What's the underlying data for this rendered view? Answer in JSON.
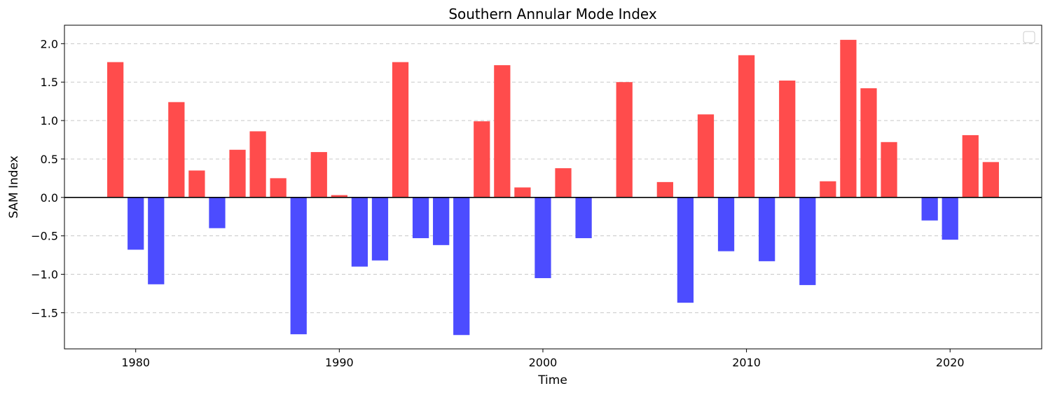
{
  "chart_data": {
    "type": "bar",
    "title": "Southern Annular Mode Index",
    "xlabel": "Time",
    "ylabel": "SAM Index",
    "xlim": [
      1976.5,
      2024.5
    ],
    "ylim": [
      -1.97,
      2.24
    ],
    "xticks": [
      1980,
      1990,
      2000,
      2010,
      2020
    ],
    "yticks": [
      -1.5,
      -1.0,
      -0.5,
      0.0,
      0.5,
      1.0,
      1.5,
      2.0
    ],
    "ytick_labels": [
      "−1.5",
      "−1.0",
      "−0.5",
      "0.0",
      "0.5",
      "1.0",
      "1.5",
      "2.0"
    ],
    "grid": "y-dashed",
    "zero_line": true,
    "legend": "top-right (empty)",
    "colors": {
      "positive": "#ff4c4c",
      "negative": "#4c4cff",
      "zero_line": "#000000",
      "grid": "#c8c8c8"
    },
    "x": [
      1979,
      1980,
      1981,
      1982,
      1983,
      1984,
      1985,
      1986,
      1987,
      1988,
      1989,
      1990,
      1991,
      1992,
      1993,
      1994,
      1995,
      1996,
      1997,
      1998,
      1999,
      2000,
      2001,
      2002,
      2003,
      2004,
      2005,
      2006,
      2007,
      2008,
      2009,
      2010,
      2011,
      2012,
      2013,
      2014,
      2015,
      2016,
      2017,
      2018,
      2019,
      2020,
      2021,
      2022
    ],
    "values": [
      1.76,
      -0.68,
      -1.13,
      1.24,
      0.35,
      -0.4,
      0.62,
      0.86,
      0.25,
      -1.78,
      0.59,
      0.03,
      -0.9,
      -0.82,
      1.76,
      -0.53,
      -0.62,
      -1.79,
      0.99,
      1.72,
      0.13,
      -1.05,
      0.38,
      -0.53,
      0.0,
      1.5,
      0.0,
      0.2,
      -1.37,
      1.08,
      -0.7,
      1.85,
      -0.83,
      1.52,
      -1.14,
      0.21,
      2.05,
      1.42,
      0.72,
      0.0,
      -0.3,
      -0.55,
      0.81,
      0.46
    ]
  }
}
